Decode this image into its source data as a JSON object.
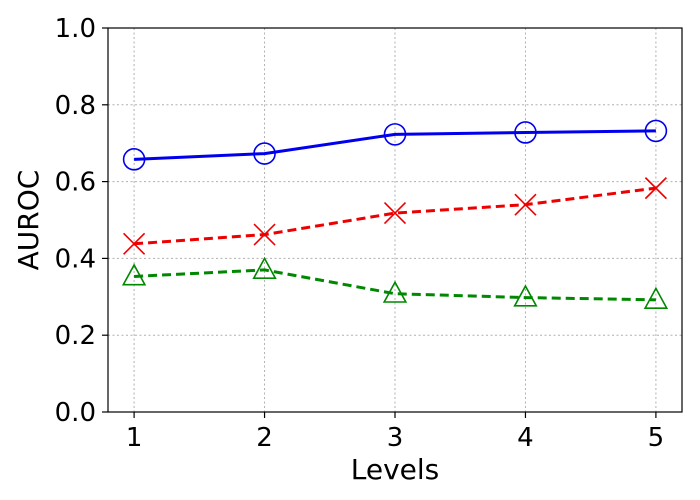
{
  "chart_data": {
    "type": "line",
    "title": "",
    "xlabel": "Levels",
    "ylabel": "AUROC",
    "x": [
      1,
      2,
      3,
      4,
      5
    ],
    "x_ticks": [
      "1",
      "2",
      "3",
      "4",
      "5"
    ],
    "y_ticks": [
      "0.0",
      "0.2",
      "0.4",
      "0.6",
      "0.8",
      "1.0"
    ],
    "xlim": [
      0.8,
      5.2
    ],
    "ylim": [
      0.0,
      1.0
    ],
    "grid": true,
    "series": [
      {
        "color": "#0000ee",
        "line_style": "solid",
        "marker": "circle",
        "values": [
          0.658,
          0.673,
          0.723,
          0.728,
          0.732
        ]
      },
      {
        "color": "#ee0000",
        "line_style": "dashed",
        "marker": "x",
        "values": [
          0.438,
          0.462,
          0.518,
          0.54,
          0.583
        ]
      },
      {
        "color": "#008800",
        "line_style": "dashed",
        "marker": "triangle",
        "values": [
          0.353,
          0.37,
          0.308,
          0.298,
          0.292
        ]
      }
    ]
  }
}
